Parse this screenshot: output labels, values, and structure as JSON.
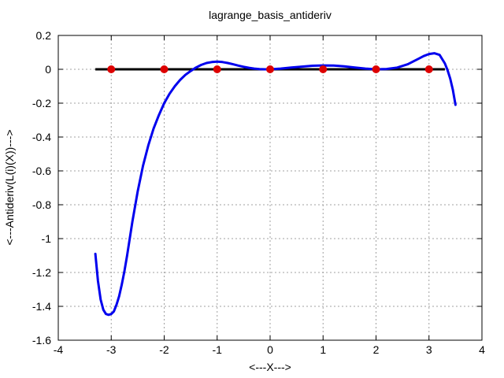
{
  "chart_data": {
    "type": "line",
    "title": "lagrange_basis_antideriv",
    "xlabel": "<---X--->",
    "ylabel": "<---Antideriv(L(i)(X))--->",
    "xlim": [
      -4,
      4
    ],
    "ylim": [
      -1.6,
      0.2
    ],
    "grid": true,
    "xticks": [
      -4,
      -3,
      -2,
      -1,
      0,
      1,
      2,
      3,
      4
    ],
    "xtick_labels": [
      "-4",
      "-3",
      "-2",
      "-1",
      "0",
      "1",
      "2",
      "3",
      "4"
    ],
    "yticks": [
      -1.6,
      -1.4,
      -1.2,
      -1.0,
      -0.8,
      -0.6,
      -0.4,
      -0.2,
      0,
      0.2
    ],
    "ytick_labels": [
      "-1.6",
      "-1.4",
      "-1.2",
      "-1",
      "-0.8",
      "-0.6",
      "-0.4",
      "-0.2",
      "0",
      "0.2"
    ],
    "colors": {
      "curve": "#0000ee",
      "baseline": "#000000",
      "nodes": "#dd0000",
      "grid": "#a0a0a0"
    },
    "baseline": {
      "x": [
        -3.3,
        3.3
      ],
      "y": [
        0,
        0
      ]
    },
    "nodes": {
      "x": [
        -3,
        -2,
        -1,
        0,
        1,
        2,
        3
      ],
      "y": [
        0,
        0,
        0,
        0,
        0,
        0,
        0
      ]
    },
    "series": [
      {
        "x": [
          -3.3,
          -3.25,
          -3.2,
          -3.15,
          -3.1,
          -3.05,
          -3.0,
          -2.95,
          -2.9,
          -2.85,
          -2.8,
          -2.75,
          -2.7,
          -2.6,
          -2.5,
          -2.4,
          -2.3,
          -2.2,
          -2.1,
          -2.0,
          -1.9,
          -1.8,
          -1.7,
          -1.6,
          -1.5,
          -1.4,
          -1.3,
          -1.2,
          -1.1,
          -1.0,
          -0.9,
          -0.8,
          -0.7,
          -0.6,
          -0.5,
          -0.4,
          -0.3,
          -0.2,
          -0.1,
          0.0,
          0.2,
          0.4,
          0.6,
          0.8,
          1.0,
          1.2,
          1.4,
          1.6,
          1.8,
          2.0,
          2.2,
          2.4,
          2.6,
          2.8,
          2.9,
          3.0,
          3.1,
          3.2,
          3.3,
          3.35,
          3.4,
          3.45,
          3.5
        ],
        "y": [
          -1.09,
          -1.25,
          -1.36,
          -1.42,
          -1.445,
          -1.45,
          -1.445,
          -1.43,
          -1.39,
          -1.34,
          -1.27,
          -1.19,
          -1.1,
          -0.9,
          -0.72,
          -0.57,
          -0.45,
          -0.35,
          -0.27,
          -0.2,
          -0.145,
          -0.1,
          -0.063,
          -0.033,
          -0.01,
          0.01,
          0.026,
          0.037,
          0.043,
          0.045,
          0.043,
          0.037,
          0.03,
          0.022,
          0.015,
          0.009,
          0.004,
          0.001,
          0.0,
          0.0,
          0.004,
          0.01,
          0.016,
          0.021,
          0.023,
          0.022,
          0.017,
          0.01,
          0.004,
          0.0,
          0.002,
          0.01,
          0.03,
          0.062,
          0.078,
          0.09,
          0.095,
          0.085,
          0.035,
          -0.005,
          -0.055,
          -0.12,
          -0.21
        ]
      }
    ]
  }
}
